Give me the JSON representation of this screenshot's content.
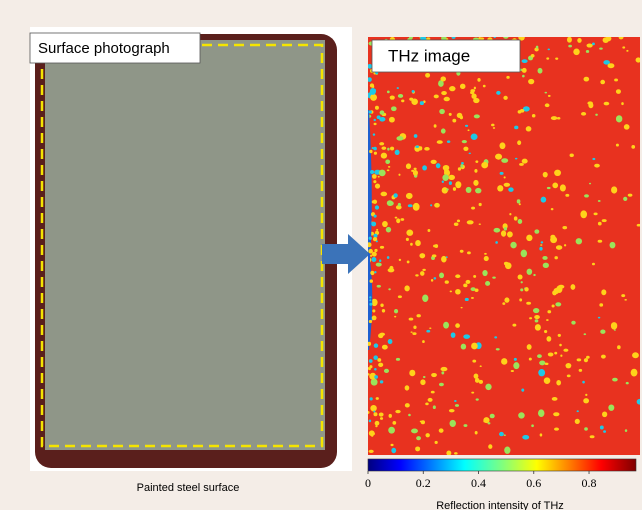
{
  "panels": {
    "left_label": "Surface photograph",
    "right_label": "THz image",
    "caption": "Painted steel surface"
  },
  "colorbar": {
    "label": "Reflection intensity of THz",
    "lim": [
      0,
      0.97
    ],
    "ticks": [
      0,
      0.2,
      0.4,
      0.6,
      0.8
    ]
  }
}
